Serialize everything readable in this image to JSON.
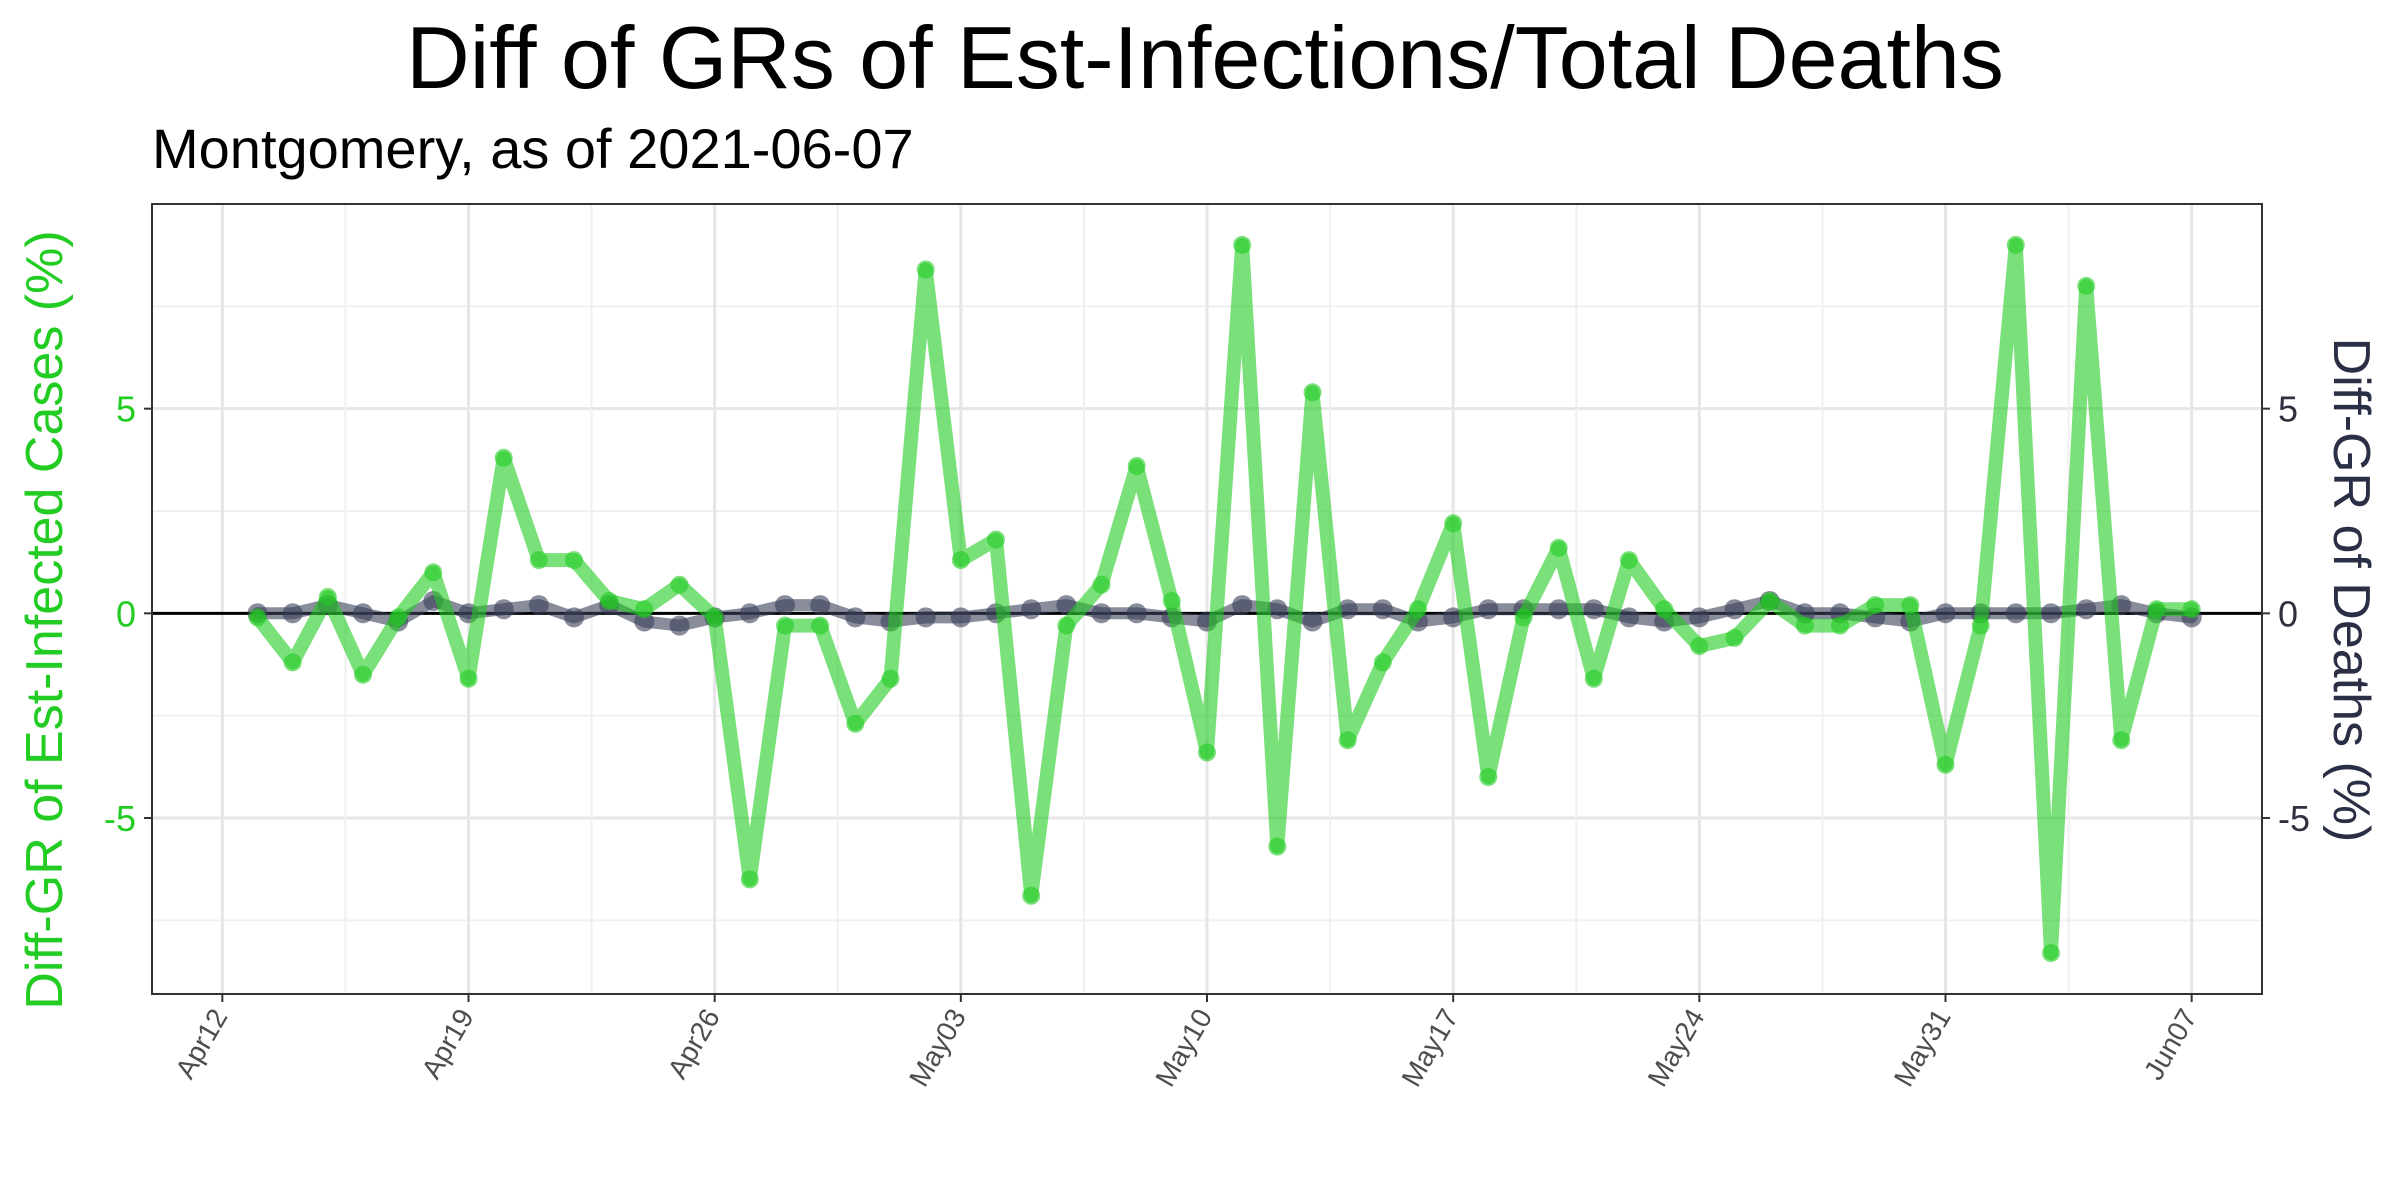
{
  "chart_data": {
    "type": "line",
    "title": "Diff of GRs of Est-Infections/Total Deaths",
    "subtitle": "Montgomery, as of 2021-06-07",
    "ylabel_left": "Diff-GR of Est-Infected Cases (%)",
    "ylabel_right": "Diff-GR of Deaths (%)",
    "x_ticks": [
      "Apr12",
      "Apr19",
      "Apr26",
      "May03",
      "May10",
      "May17",
      "May24",
      "May31",
      "Jun07"
    ],
    "y_ticks": [
      "-5",
      "0",
      "5"
    ],
    "y_tick_values": [
      -5,
      0,
      5
    ],
    "xlim": [
      "2021-04-10",
      "2021-06-09"
    ],
    "ylim": [
      -9.3,
      10.0
    ],
    "grid": true,
    "colors": {
      "infections": "#22cc22",
      "deaths": "#3a4058",
      "zero_line": "#000000"
    },
    "start_date": "2021-04-13",
    "series": [
      {
        "key": "infections",
        "values": [
          -0.1,
          -1.2,
          0.4,
          -1.5,
          -0.1,
          1.0,
          -1.6,
          3.8,
          1.3,
          1.3,
          0.3,
          0.1,
          0.7,
          -0.1,
          -6.5,
          -0.3,
          -0.3,
          -2.7,
          -1.6,
          8.4,
          1.3,
          1.8,
          -6.9,
          -0.3,
          0.7,
          3.6,
          0.3,
          -3.4,
          9.0,
          -5.7,
          5.4,
          -3.1,
          -1.2,
          0.1,
          2.2,
          -4.0,
          -0.1,
          1.6,
          -1.6,
          1.3,
          0.1,
          -0.8,
          -0.6,
          0.3,
          -0.3,
          -0.3,
          0.2,
          0.2,
          -3.7,
          -0.3,
          9.0,
          -8.3,
          8.0,
          -3.1,
          0.1,
          0.1
        ]
      },
      {
        "key": "deaths",
        "values": [
          0.0,
          0.0,
          0.2,
          0.0,
          -0.2,
          0.3,
          0.0,
          0.1,
          0.2,
          -0.1,
          0.2,
          -0.2,
          -0.3,
          -0.1,
          0.0,
          0.2,
          0.2,
          -0.1,
          -0.2,
          -0.1,
          -0.1,
          0.0,
          0.1,
          0.2,
          0.0,
          0.0,
          -0.1,
          -0.2,
          0.2,
          0.1,
          -0.2,
          0.1,
          0.1,
          -0.2,
          -0.1,
          0.1,
          0.1,
          0.1,
          0.1,
          -0.1,
          -0.2,
          -0.1,
          0.1,
          0.3,
          0.0,
          0.0,
          -0.1,
          -0.2,
          0.0,
          0.0,
          0.0,
          0.0,
          0.1,
          0.2,
          0.0,
          -0.1
        ]
      }
    ]
  }
}
